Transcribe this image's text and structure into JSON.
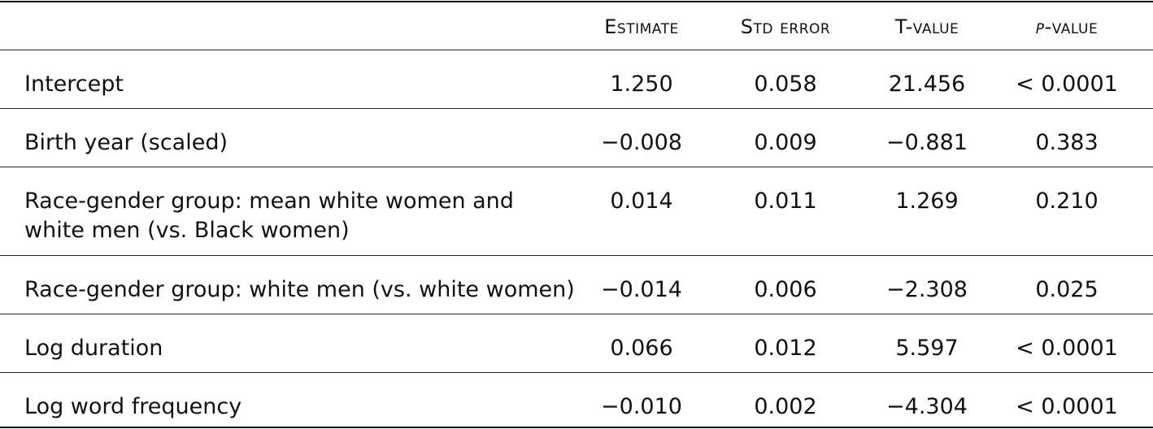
{
  "columns": {
    "estimate": "Estimate",
    "std_error": "Std error",
    "t_value": "T-value",
    "p_value_italic": "p",
    "p_value_rest": "-value"
  },
  "rows": [
    {
      "label": "Intercept",
      "estimate": "1.250",
      "std_error": "0.058",
      "t_value": "21.456",
      "p_value": "< 0.0001"
    },
    {
      "label": "Birth year (scaled)",
      "estimate": "−0.008",
      "std_error": "0.009",
      "t_value": "−0.881",
      "p_value": "0.383"
    },
    {
      "label": "Race-gender group: mean white women and white men (vs. Black women)",
      "estimate": "0.014",
      "std_error": "0.011",
      "t_value": "1.269",
      "p_value": "0.210"
    },
    {
      "label": "Race-gender group: white men (vs. white women)",
      "estimate": "−0.014",
      "std_error": "0.006",
      "t_value": "−2.308",
      "p_value": "0.025"
    },
    {
      "label": "Log duration",
      "estimate": "0.066",
      "std_error": "0.012",
      "t_value": "5.597",
      "p_value": "< 0.0001"
    },
    {
      "label": "Log word frequency",
      "estimate": "−0.010",
      "std_error": "0.002",
      "t_value": "−4.304",
      "p_value": "< 0.0001"
    }
  ]
}
